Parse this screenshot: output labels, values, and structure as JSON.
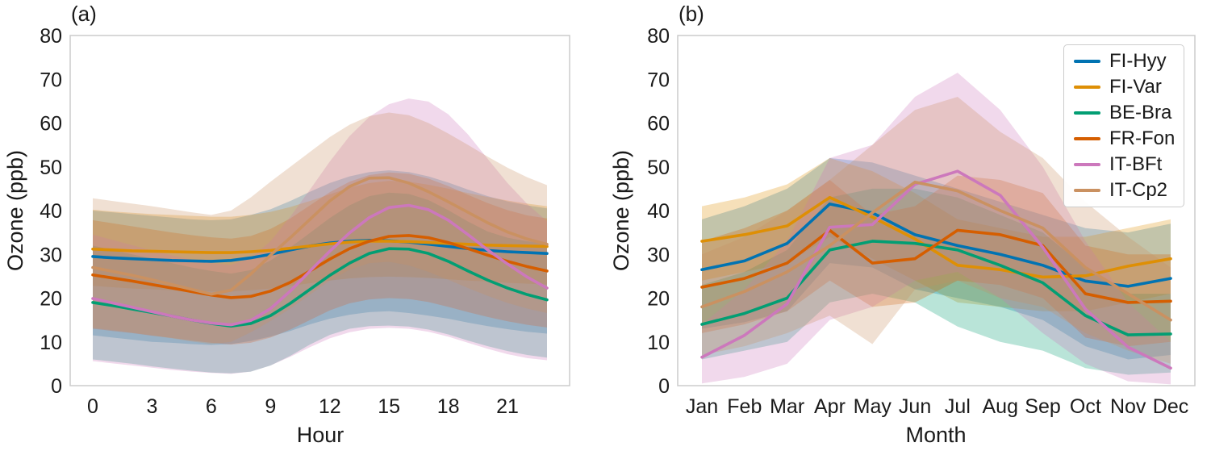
{
  "figure": {
    "panel_a_label": "(a)",
    "panel_b_label": "(b)",
    "ylabel": "Ozone (ppb)"
  },
  "legend": {
    "entries": [
      "FI-Hyy",
      "FI-Var",
      "BE-Bra",
      "FR-Fon",
      "IT-BFt",
      "IT-Cp2"
    ]
  },
  "chart_data": [
    {
      "type": "line",
      "title": "(a)",
      "xlabel": "Hour",
      "ylabel": "Ozone (ppb)",
      "ylim": [
        0,
        80
      ],
      "yticks": [
        0,
        10,
        20,
        30,
        40,
        50,
        60,
        70,
        80
      ],
      "x": [
        0,
        1,
        2,
        3,
        4,
        5,
        6,
        7,
        8,
        9,
        10,
        11,
        12,
        13,
        14,
        15,
        16,
        17,
        18,
        19,
        20,
        21,
        22,
        23
      ],
      "xticks": [
        0,
        3,
        6,
        9,
        12,
        15,
        18,
        21
      ],
      "grid": false,
      "legend_position": "none",
      "band_style": "shaded mean +/- spread",
      "series": [
        {
          "name": "FI-Hyy",
          "color": "#0173b2",
          "values": [
            29.5,
            29.2,
            29.0,
            28.8,
            28.6,
            28.5,
            28.4,
            28.6,
            29.2,
            30.0,
            31.0,
            31.9,
            32.6,
            33.0,
            33.2,
            33.1,
            32.8,
            32.3,
            31.8,
            31.3,
            30.9,
            30.6,
            30.4,
            30.2
          ],
          "band_low": [
            11.5,
            11.0,
            10.5,
            10.0,
            9.8,
            9.5,
            9.3,
            9.5,
            10.2,
            11.2,
            12.5,
            14.0,
            15.3,
            16.2,
            16.8,
            17.0,
            16.6,
            16.0,
            15.3,
            14.4,
            13.6,
            12.9,
            12.3,
            11.9
          ],
          "band_high": [
            40.0,
            39.6,
            39.2,
            38.8,
            38.4,
            38.0,
            37.8,
            38.0,
            39.0,
            40.3,
            42.2,
            44.3,
            46.3,
            47.8,
            48.8,
            49.2,
            48.8,
            47.8,
            46.4,
            44.8,
            43.3,
            42.1,
            41.2,
            40.5
          ]
        },
        {
          "name": "FI-Var",
          "color": "#de8f05",
          "values": [
            31.2,
            31.0,
            30.8,
            30.7,
            30.6,
            30.5,
            30.4,
            30.4,
            30.6,
            30.9,
            31.4,
            31.9,
            32.4,
            32.8,
            33.0,
            33.0,
            32.9,
            32.7,
            32.5,
            32.3,
            32.1,
            32.0,
            31.9,
            31.8
          ],
          "band_low": [
            22.8,
            22.5,
            22.2,
            22.0,
            21.8,
            21.6,
            21.5,
            21.5,
            21.8,
            22.2,
            22.8,
            23.4,
            24.0,
            24.5,
            24.8,
            24.9,
            24.8,
            24.6,
            24.3,
            24.0,
            23.8,
            23.5,
            23.3,
            23.1
          ],
          "band_high": [
            40.2,
            39.8,
            39.5,
            39.2,
            39.0,
            38.8,
            38.6,
            38.6,
            39.0,
            39.7,
            40.8,
            42.2,
            43.7,
            45.2,
            46.3,
            46.8,
            46.6,
            45.9,
            45.0,
            44.0,
            43.1,
            42.3,
            41.6,
            41.0
          ]
        },
        {
          "name": "BE-Bra",
          "color": "#029e73",
          "values": [
            19.0,
            18.3,
            17.5,
            16.7,
            15.9,
            15.0,
            14.2,
            13.6,
            14.2,
            16.0,
            18.8,
            22.0,
            25.2,
            28.0,
            30.2,
            31.3,
            31.2,
            30.2,
            28.4,
            26.2,
            24.1,
            22.3,
            20.8,
            19.6
          ],
          "band_low": [
            6.0,
            5.5,
            5.0,
            4.4,
            3.9,
            3.4,
            3.0,
            2.8,
            3.2,
            4.6,
            6.8,
            9.4,
            11.6,
            13.0,
            13.6,
            13.7,
            13.5,
            12.8,
            11.7,
            10.3,
            9.0,
            7.9,
            7.0,
            6.4
          ],
          "band_high": [
            32.0,
            31.0,
            30.0,
            29.0,
            28.0,
            27.0,
            26.2,
            25.6,
            26.4,
            28.6,
            31.6,
            34.9,
            38.3,
            41.2,
            43.3,
            44.1,
            43.8,
            42.4,
            40.1,
            37.5,
            35.2,
            33.8,
            33.0,
            32.4
          ]
        },
        {
          "name": "FR-Fon",
          "color": "#d55e00",
          "values": [
            25.3,
            24.6,
            23.9,
            23.1,
            22.3,
            21.5,
            20.7,
            20.1,
            20.4,
            21.6,
            23.6,
            26.2,
            28.9,
            31.3,
            33.0,
            34.1,
            34.3,
            33.8,
            32.7,
            31.3,
            29.8,
            28.4,
            27.2,
            26.2
          ],
          "band_low": [
            13.0,
            12.5,
            12.0,
            11.4,
            10.9,
            10.3,
            9.8,
            9.4,
            9.8,
            11.0,
            12.8,
            15.0,
            17.2,
            18.8,
            19.7,
            20.0,
            19.8,
            19.1,
            18.0,
            16.8,
            15.7,
            14.7,
            13.9,
            13.3
          ],
          "band_high": [
            37.8,
            37.1,
            36.4,
            35.7,
            35.0,
            34.4,
            33.9,
            33.6,
            34.2,
            35.8,
            38.2,
            41.2,
            44.2,
            46.6,
            48.1,
            48.7,
            48.4,
            47.3,
            45.6,
            43.6,
            41.7,
            40.1,
            38.9,
            38.2
          ]
        },
        {
          "name": "IT-BFt",
          "color": "#cc78bc",
          "values": [
            19.9,
            18.9,
            17.9,
            16.9,
            15.9,
            15.0,
            14.3,
            13.9,
            14.9,
            17.6,
            21.6,
            26.2,
            30.7,
            34.9,
            38.4,
            40.7,
            41.2,
            40.2,
            37.8,
            34.5,
            31.0,
            27.8,
            24.8,
            22.3
          ],
          "band_low": [
            5.6,
            5.1,
            4.6,
            4.1,
            3.6,
            3.2,
            2.9,
            2.7,
            3.2,
            4.6,
            6.6,
            8.8,
            10.8,
            12.2,
            13.0,
            13.2,
            13.0,
            12.3,
            11.2,
            9.8,
            8.4,
            7.2,
            6.3,
            5.8
          ],
          "band_high": [
            34.5,
            33.3,
            32.1,
            30.9,
            29.8,
            28.8,
            28.0,
            27.6,
            29.2,
            33.0,
            38.6,
            44.8,
            51.2,
            57.0,
            61.4,
            64.3,
            65.6,
            64.9,
            62.0,
            57.4,
            51.8,
            46.3,
            41.5,
            37.6
          ]
        },
        {
          "name": "IT-Cp2",
          "color": "#ca9161",
          "values": [
            27.0,
            26.1,
            25.2,
            24.2,
            23.1,
            22.0,
            20.9,
            21.8,
            25.5,
            29.8,
            33.8,
            38.0,
            42.2,
            45.5,
            47.4,
            47.5,
            46.3,
            44.3,
            42.0,
            39.6,
            37.2,
            35.1,
            33.5,
            32.3
          ],
          "band_low": [
            13.2,
            12.7,
            12.1,
            11.5,
            10.8,
            10.1,
            9.5,
            10.0,
            12.2,
            14.8,
            17.6,
            20.8,
            24.0,
            26.5,
            28.0,
            28.3,
            27.5,
            26.0,
            24.2,
            22.3,
            20.5,
            18.9,
            17.6,
            16.6
          ],
          "band_high": [
            42.8,
            42.2,
            41.6,
            41.0,
            40.3,
            39.6,
            39.0,
            40.0,
            43.0,
            46.6,
            50.0,
            53.4,
            56.8,
            59.6,
            61.6,
            62.4,
            61.8,
            60.0,
            57.6,
            55.0,
            52.3,
            49.8,
            47.6,
            45.8
          ]
        }
      ]
    },
    {
      "type": "line",
      "title": "(b)",
      "xlabel": "Month",
      "ylabel": "Ozone (ppb)",
      "ylim": [
        0,
        80
      ],
      "yticks": [
        0,
        10,
        20,
        30,
        40,
        50,
        60,
        70,
        80
      ],
      "categories": [
        "Jan",
        "Feb",
        "Mar",
        "Apr",
        "May",
        "Jun",
        "Jul",
        "Aug",
        "Sep",
        "Oct",
        "Nov",
        "Dec"
      ],
      "grid": false,
      "legend_position": "upper right",
      "band_style": "shaded mean +/- spread",
      "series": [
        {
          "name": "FI-Hyy",
          "color": "#0173b2",
          "values": [
            26.5,
            28.5,
            32.5,
            41.5,
            39.5,
            34.5,
            32.0,
            30.0,
            27.5,
            23.9,
            22.7,
            24.5
          ],
          "band_low": [
            13.0,
            14.5,
            17.0,
            28.0,
            27.0,
            22.0,
            20.0,
            18.0,
            15.0,
            9.0,
            6.0,
            7.0
          ],
          "band_high": [
            38.0,
            41.0,
            45.0,
            52.0,
            51.0,
            48.0,
            45.0,
            42.0,
            39.0,
            36.0,
            35.0,
            37.0
          ]
        },
        {
          "name": "FI-Var",
          "color": "#de8f05",
          "values": [
            33.0,
            34.5,
            36.5,
            43.0,
            38.5,
            33.5,
            27.5,
            26.5,
            24.8,
            25.1,
            27.3,
            29.0
          ],
          "band_low": [
            24.0,
            26.0,
            28.0,
            34.0,
            29.0,
            24.0,
            19.0,
            18.0,
            17.0,
            17.0,
            19.0,
            21.0
          ],
          "band_high": [
            41.0,
            43.0,
            46.0,
            52.0,
            49.0,
            44.0,
            38.0,
            36.0,
            34.0,
            34.0,
            36.0,
            38.0
          ]
        },
        {
          "name": "BE-Bra",
          "color": "#029e73",
          "values": [
            14.0,
            16.5,
            20.0,
            31.0,
            33.0,
            32.5,
            31.0,
            27.5,
            23.5,
            16.0,
            11.6,
            11.8
          ],
          "band_low": [
            6.0,
            8.0,
            10.0,
            19.0,
            21.0,
            19.0,
            13.5,
            10.0,
            8.0,
            4.0,
            2.5,
            3.0
          ],
          "band_high": [
            23.0,
            26.0,
            31.0,
            43.0,
            45.0,
            45.0,
            43.0,
            39.0,
            35.0,
            27.0,
            21.0,
            21.0
          ]
        },
        {
          "name": "FR-Fon",
          "color": "#d55e00",
          "values": [
            22.5,
            24.5,
            28.0,
            35.5,
            28.0,
            29.0,
            35.5,
            34.5,
            32.0,
            21.0,
            19.0,
            19.3
          ],
          "band_low": [
            12.0,
            14.0,
            17.0,
            24.0,
            18.0,
            19.0,
            24.0,
            23.0,
            20.0,
            11.0,
            9.0,
            10.0
          ],
          "band_high": [
            33.0,
            36.0,
            40.0,
            47.0,
            39.0,
            41.0,
            48.0,
            47.0,
            44.0,
            32.0,
            30.0,
            30.0
          ]
        },
        {
          "name": "IT-BFt",
          "color": "#cc78bc",
          "values": [
            6.5,
            11.5,
            18.7,
            36.2,
            36.8,
            46.0,
            49.0,
            43.5,
            31.6,
            17.5,
            8.8,
            4.0
          ],
          "band_low": [
            0.5,
            2.0,
            5.0,
            15.0,
            18.0,
            24.0,
            26.0,
            20.0,
            12.0,
            5.0,
            1.0,
            0.3
          ],
          "band_high": [
            14.0,
            22.0,
            33.0,
            52.0,
            55.0,
            66.0,
            71.5,
            63.0,
            50.0,
            33.0,
            19.0,
            10.0
          ]
        },
        {
          "name": "IT-Cp2",
          "color": "#ca9161",
          "values": [
            18.0,
            21.5,
            26.0,
            32.0,
            39.5,
            46.5,
            44.5,
            40.0,
            36.0,
            27.0,
            21.0,
            15.0
          ],
          "band_low": [
            7.0,
            9.0,
            12.0,
            16.0,
            9.5,
            22.0,
            24.0,
            20.0,
            18.0,
            12.0,
            8.0,
            5.0
          ],
          "band_high": [
            30.0,
            34.0,
            40.0,
            47.0,
            55.0,
            63.0,
            66.0,
            58.0,
            52.0,
            42.0,
            34.0,
            27.0
          ]
        }
      ]
    }
  ]
}
